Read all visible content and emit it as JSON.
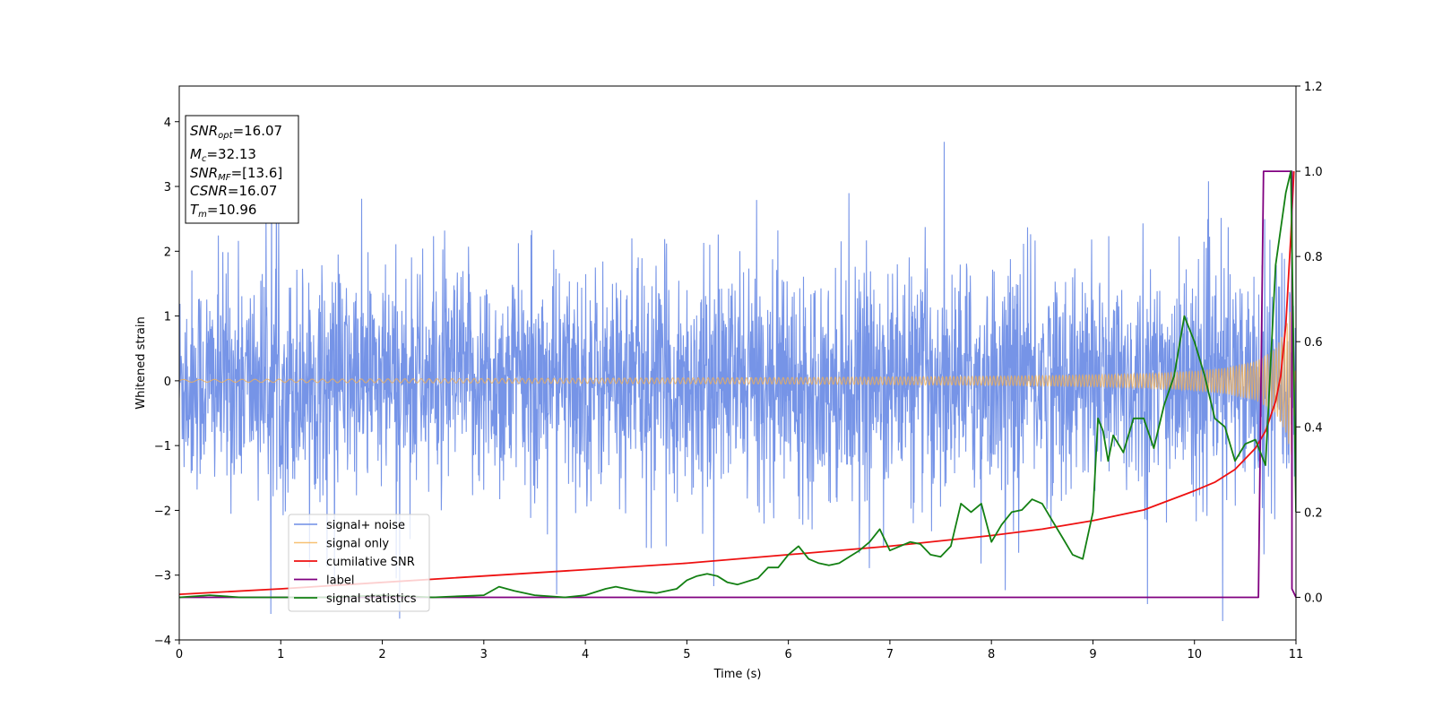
{
  "chart_data": {
    "type": "line",
    "title": "",
    "xlabel": "Time (s)",
    "ylabel": "Whitened strain",
    "y2label": "",
    "xlim": [
      0,
      11
    ],
    "ylim": [
      -4,
      4.55
    ],
    "y2lim": [
      -0.1,
      1.2
    ],
    "x_ticks": [
      "0",
      "1",
      "2",
      "3",
      "4",
      "5",
      "6",
      "7",
      "8",
      "9",
      "10",
      "11"
    ],
    "y_ticks": [
      "−4",
      "−3",
      "−2",
      "−1",
      "0",
      "1",
      "2",
      "3",
      "4"
    ],
    "y2_ticks": [
      "0.0",
      "0.2",
      "0.4",
      "0.6",
      "0.8",
      "1.0",
      "1.2"
    ],
    "grid": false,
    "legend_position": "lower-left",
    "annotation": {
      "snr_opt": "=16.07",
      "mc": "=32.13",
      "snr_mf": "=[13.6]",
      "csnr": "=16.07",
      "tm": "=10.96"
    },
    "series": [
      {
        "name": "signal+ noise",
        "color": "#6f8ee6",
        "axis": "left",
        "description": "whitened noisy strain, roughly N(0,1) noise with sparse spikes",
        "envelope_approx": {
          "typical_min": -2.0,
          "typical_max": 2.0,
          "spike_max": 3.75,
          "spike_min": -3.65
        }
      },
      {
        "name": "signal only",
        "color": "#f5b050",
        "axis": "left",
        "description": "chirp signal growing in amplitude toward merger",
        "x": [
          0,
          2,
          4,
          6,
          8,
          9,
          9.5,
          10,
          10.3,
          10.6,
          10.8,
          10.9,
          10.96,
          11.0
        ],
        "amplitude": [
          0.02,
          0.03,
          0.04,
          0.05,
          0.07,
          0.09,
          0.11,
          0.15,
          0.2,
          0.3,
          0.5,
          0.8,
          1.2,
          0.0
        ]
      },
      {
        "name": "cumilative SNR",
        "color": "#ee1111",
        "axis": "right",
        "x": [
          0,
          1,
          2,
          3,
          4,
          5,
          6,
          7,
          8,
          8.5,
          9,
          9.5,
          10,
          10.2,
          10.4,
          10.6,
          10.7,
          10.8,
          10.85,
          10.9,
          10.95,
          10.98
        ],
        "y": [
          0.007,
          0.02,
          0.035,
          0.05,
          0.065,
          0.08,
          0.1,
          0.12,
          0.145,
          0.16,
          0.18,
          0.205,
          0.25,
          0.27,
          0.3,
          0.35,
          0.39,
          0.46,
          0.52,
          0.64,
          0.85,
          1.0
        ]
      },
      {
        "name": "label",
        "color": "#800080",
        "axis": "right",
        "x": [
          0,
          10.63,
          10.68,
          10.96,
          10.96,
          11.0
        ],
        "y": [
          0.0,
          0.0,
          1.0,
          1.0,
          0.02,
          0.0
        ]
      },
      {
        "name": "signal statistics",
        "color": "#138013",
        "axis": "right",
        "x": [
          0,
          0.3,
          0.6,
          1.0,
          1.5,
          2.0,
          2.5,
          3.0,
          3.15,
          3.3,
          3.5,
          3.8,
          4.0,
          4.2,
          4.3,
          4.4,
          4.5,
          4.7,
          4.9,
          5.0,
          5.1,
          5.2,
          5.3,
          5.4,
          5.5,
          5.7,
          5.8,
          5.9,
          6.0,
          6.1,
          6.2,
          6.3,
          6.4,
          6.5,
          6.6,
          6.7,
          6.8,
          6.9,
          7.0,
          7.1,
          7.2,
          7.3,
          7.4,
          7.5,
          7.6,
          7.7,
          7.8,
          7.9,
          8.0,
          8.1,
          8.2,
          8.3,
          8.4,
          8.5,
          8.6,
          8.7,
          8.8,
          8.9,
          9.0,
          9.05,
          9.1,
          9.15,
          9.2,
          9.3,
          9.4,
          9.5,
          9.6,
          9.7,
          9.8,
          9.9,
          10.0,
          10.1,
          10.2,
          10.3,
          10.4,
          10.5,
          10.6,
          10.7,
          10.8,
          10.9,
          10.95,
          11.0
        ],
        "y": [
          0.0,
          0.005,
          0.0,
          0.0,
          0.0,
          0.005,
          0.0,
          0.005,
          0.025,
          0.015,
          0.005,
          0.0,
          0.005,
          0.02,
          0.025,
          0.02,
          0.015,
          0.01,
          0.02,
          0.04,
          0.05,
          0.055,
          0.05,
          0.035,
          0.03,
          0.045,
          0.07,
          0.07,
          0.1,
          0.12,
          0.09,
          0.08,
          0.075,
          0.08,
          0.095,
          0.11,
          0.13,
          0.16,
          0.11,
          0.12,
          0.13,
          0.125,
          0.1,
          0.095,
          0.12,
          0.22,
          0.2,
          0.22,
          0.13,
          0.17,
          0.2,
          0.205,
          0.23,
          0.22,
          0.18,
          0.14,
          0.1,
          0.09,
          0.2,
          0.42,
          0.39,
          0.32,
          0.38,
          0.34,
          0.42,
          0.42,
          0.35,
          0.45,
          0.52,
          0.66,
          0.6,
          0.52,
          0.42,
          0.4,
          0.32,
          0.36,
          0.37,
          0.31,
          0.78,
          0.95,
          1.0,
          0.2
        ]
      }
    ]
  }
}
